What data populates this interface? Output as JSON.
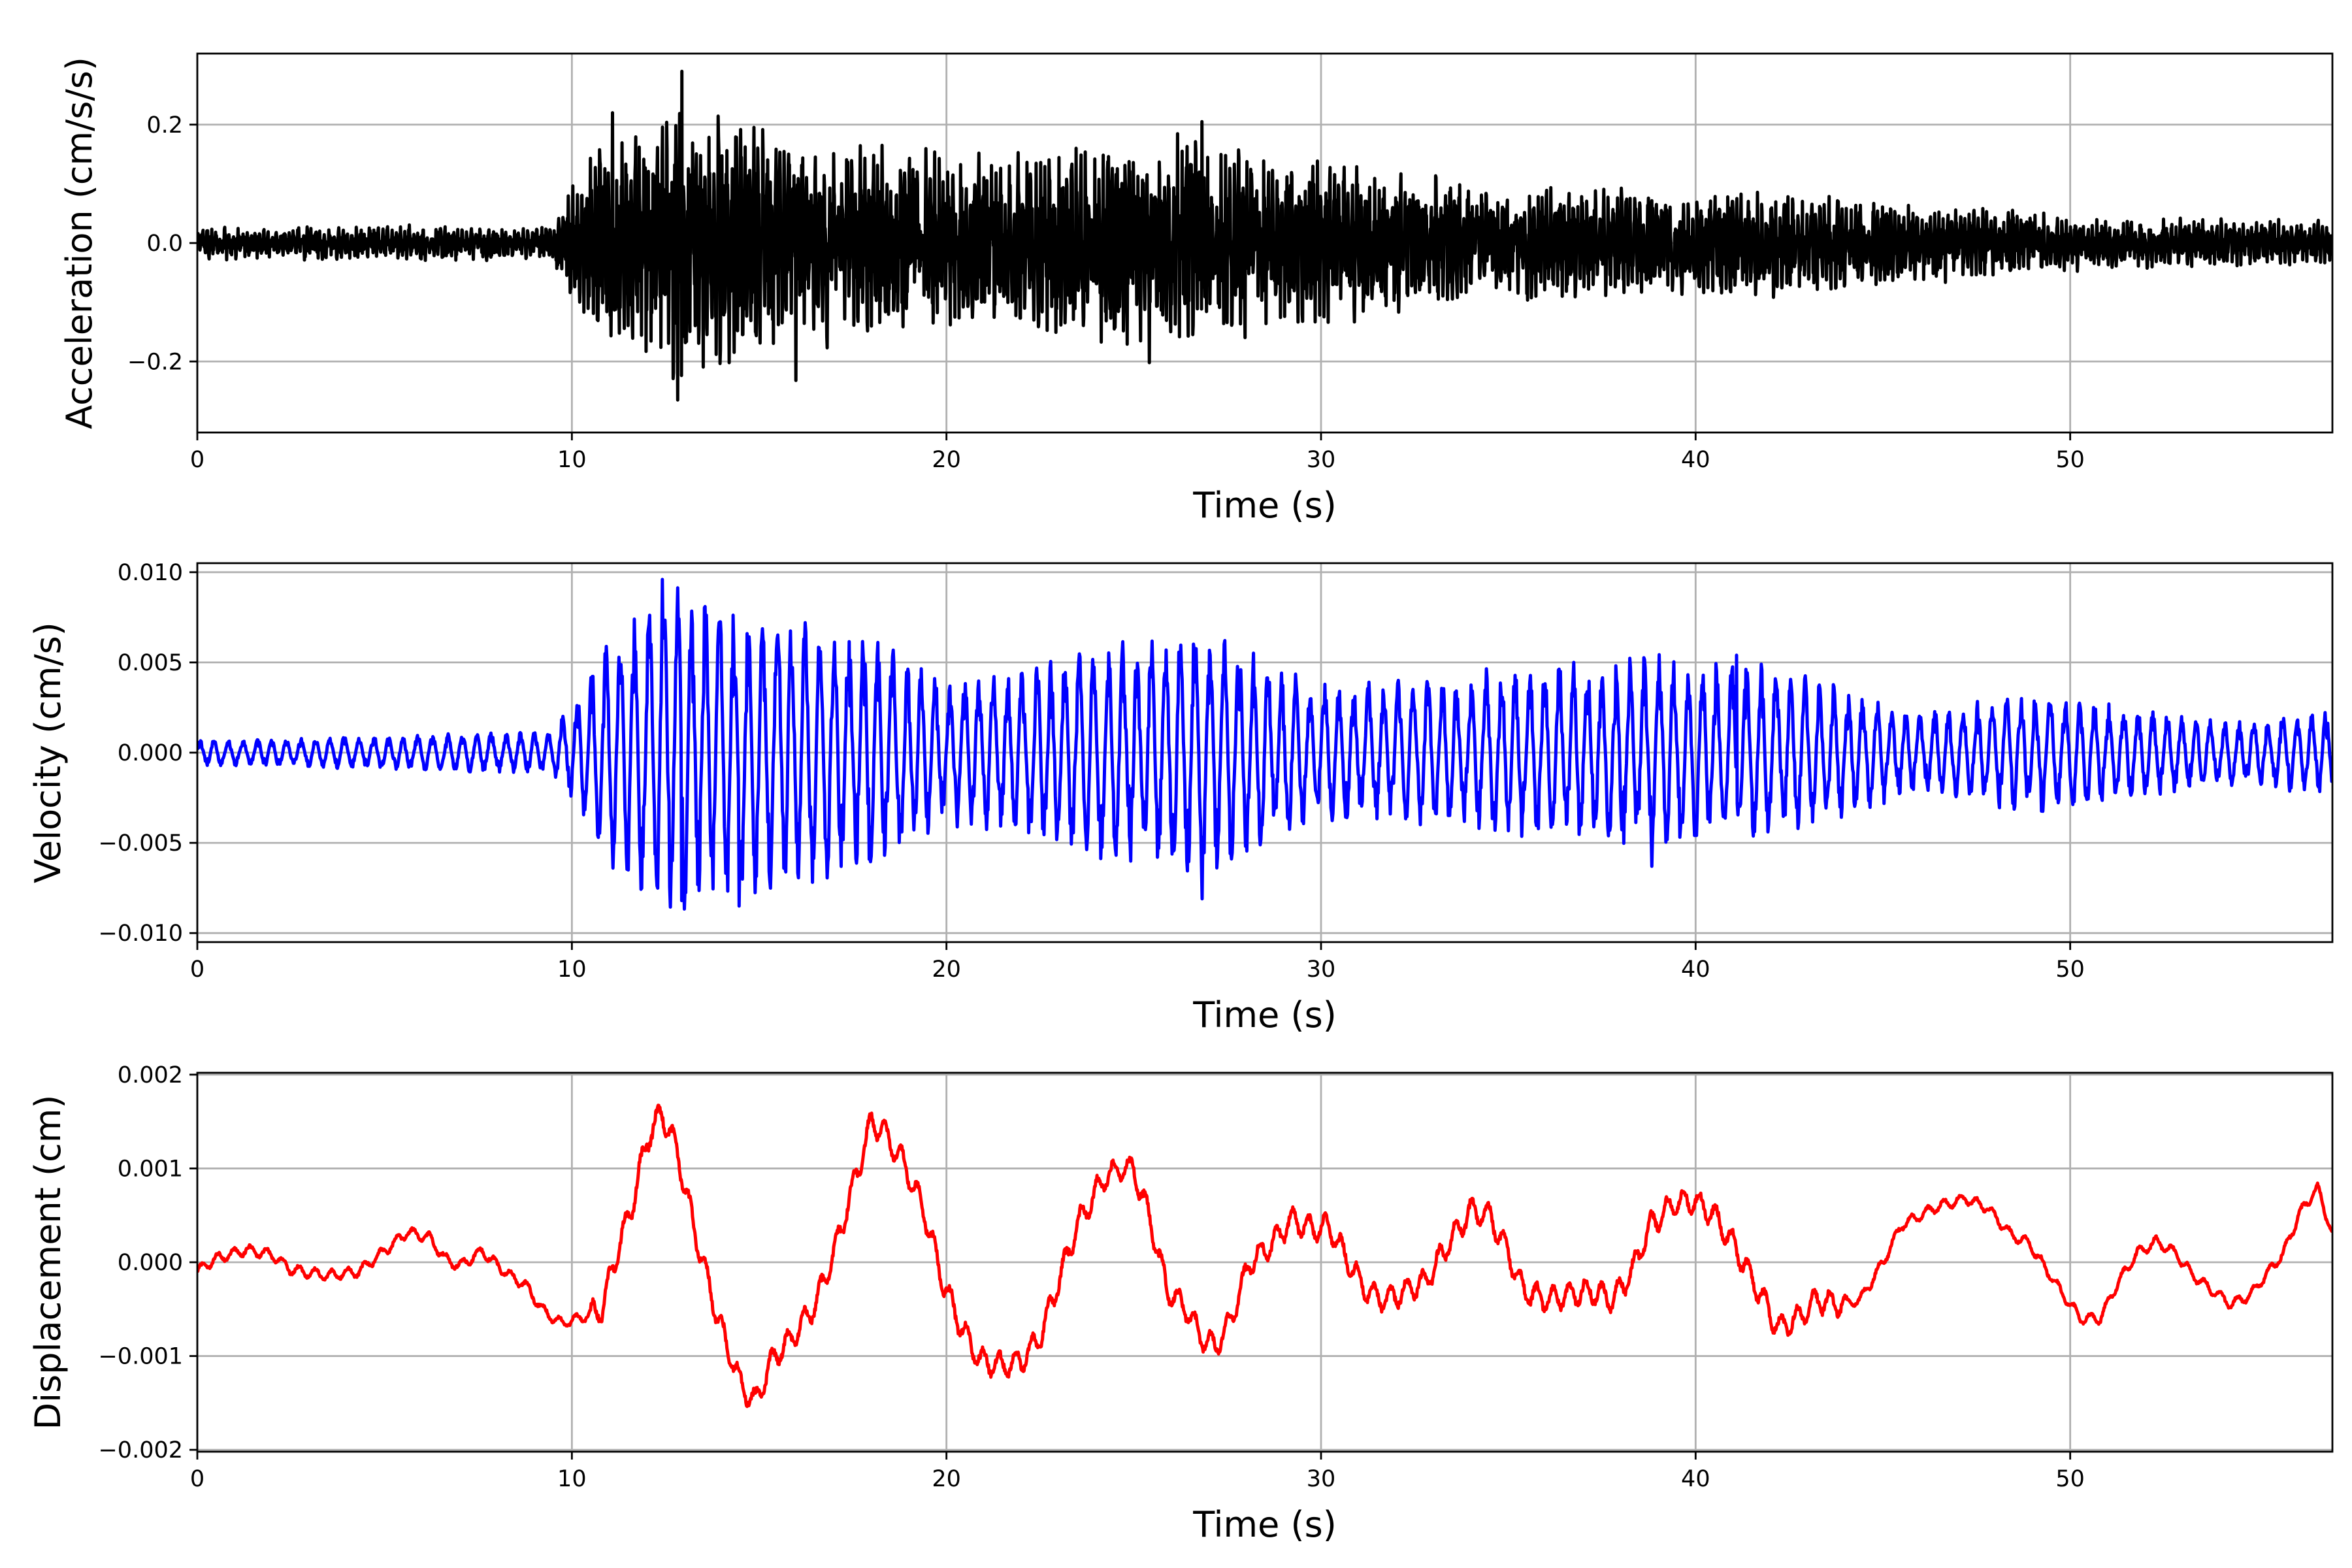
{
  "chart_data": [
    {
      "type": "line",
      "xlabel": "Time (s)",
      "ylabel": "Acceleration (cm/s/s)",
      "xlim": [
        0,
        57
      ],
      "ylim": [
        -0.32,
        0.32
      ],
      "x_ticks": [
        0,
        10,
        20,
        30,
        40,
        50
      ],
      "y_ticks": [
        -0.2,
        0.0,
        0.2
      ],
      "y_tick_labels": [
        "−0.2",
        "0.0",
        "0.2"
      ],
      "grid": true,
      "line_color": "#000000",
      "series": [
        {
          "envelope": [
            [
              0,
              0.03
            ],
            [
              9.5,
              0.035
            ],
            [
              10.7,
              0.2
            ],
            [
              12.9,
              0.27
            ],
            [
              16,
              0.2
            ],
            [
              20,
              0.17
            ],
            [
              26.8,
              0.2
            ],
            [
              30,
              0.15
            ],
            [
              36,
              0.1
            ],
            [
              42,
              0.1
            ],
            [
              50,
              0.05
            ],
            [
              57,
              0.04
            ]
          ],
          "peaks": [
            [
              12.94,
              0.29
            ],
            [
              12.82,
              -0.265
            ],
            [
              11.08,
              0.22
            ],
            [
              15.98,
              -0.232
            ],
            [
              26.82,
              0.205
            ],
            [
              25.42,
              -0.202
            ]
          ]
        }
      ]
    },
    {
      "type": "line",
      "xlabel": "Time (s)",
      "ylabel": "Velocity (cm/s)",
      "xlim": [
        0,
        57
      ],
      "ylim": [
        -0.0105,
        0.0105
      ],
      "x_ticks": [
        0,
        10,
        20,
        30,
        40,
        50
      ],
      "y_ticks": [
        -0.01,
        -0.005,
        0.0,
        0.005,
        0.01
      ],
      "y_tick_labels": [
        "−0.010",
        "−0.005",
        "0.000",
        "0.005",
        "0.010"
      ],
      "grid": true,
      "line_color": "#0000ff",
      "series": [
        {
          "envelope": [
            [
              0,
              0.0007
            ],
            [
              9.5,
              0.0012
            ],
            [
              10.8,
              0.006
            ],
            [
              12.4,
              0.0095
            ],
            [
              14.4,
              0.0085
            ],
            [
              18,
              0.007
            ],
            [
              20,
              0.004
            ],
            [
              26.8,
              0.0075
            ],
            [
              30,
              0.0038
            ],
            [
              38.8,
              0.0055
            ],
            [
              42.3,
              0.0048
            ],
            [
              46,
              0.0022
            ],
            [
              49,
              0.0035
            ],
            [
              54,
              0.0018
            ],
            [
              57,
              0.0024
            ]
          ],
          "peaks": [
            [
              12.42,
              0.0096
            ],
            [
              14.46,
              -0.0085
            ],
            [
              12.94,
              -0.0082
            ],
            [
              26.82,
              -0.0081
            ],
            [
              38.83,
              -0.0063
            ],
            [
              41.1,
              0.0054
            ]
          ]
        }
      ]
    },
    {
      "type": "line",
      "xlabel": "Time (s)",
      "ylabel": "Displacement (cm)",
      "xlim": [
        0,
        57
      ],
      "ylim": [
        -0.00202,
        0.00202
      ],
      "x_ticks": [
        0,
        10,
        20,
        30,
        40,
        50
      ],
      "y_ticks": [
        -0.002,
        -0.001,
        0.0,
        0.001,
        0.002
      ],
      "y_tick_labels": [
        "−0.002",
        "−0.001",
        "0.000",
        "0.001",
        "0.002"
      ],
      "grid": true,
      "line_color": "#ff0000",
      "series": [
        {
          "x": [
            0,
            0.5,
            1.3,
            2.0,
            2.5,
            3.5,
            4.3,
            5.0,
            5.6,
            6.2,
            6.6,
            7.0,
            7.6,
            8.2,
            8.8,
            9.2,
            9.7,
            10.2,
            10.8,
            11.2,
            11.6,
            12.0,
            12.4,
            12.8,
            13.3,
            13.9,
            14.5,
            14.9,
            15.4,
            15.9,
            16.5,
            17.0,
            17.5,
            18.0,
            18.3,
            18.8,
            19.4,
            19.9,
            20.4,
            20.9,
            21.5,
            22.0,
            22.5,
            23.0,
            23.5,
            24.2,
            24.7,
            25.0,
            25.4,
            25.9,
            26.4,
            26.8,
            27.2,
            27.6,
            28.1,
            28.7,
            29.2,
            29.8,
            30.2,
            30.6,
            31.2,
            31.7,
            32.3,
            32.8,
            33.4,
            34.0,
            34.5,
            35.0,
            35.4,
            36.0,
            36.6,
            37.2,
            37.8,
            38.3,
            38.8,
            39.5,
            40.0,
            40.5,
            41.0,
            41.6,
            42.2,
            42.7,
            43.2,
            43.8,
            44.4,
            45.0,
            45.5,
            46.0,
            46.5,
            47.2,
            47.8,
            48.4,
            48.9,
            49.4,
            49.9,
            50.3,
            50.8,
            51.3,
            51.8,
            52.3,
            52.8,
            53.3,
            53.8,
            54.3,
            54.8,
            55.3,
            55.7,
            56.1,
            56.6,
            57.0
          ],
          "y": [
            -0.0001,
            4e-05,
            0.00013,
            8e-05,
            -8e-05,
            -0.00014,
            -0.0001,
            0.00012,
            0.00032,
            0.00026,
            4e-05,
            -4e-05,
            0.00012,
            -0.0001,
            -0.00026,
            -0.0005,
            -0.00065,
            -0.0006,
            -0.0005,
            0.0001,
            0.0006,
            0.0013,
            0.0016,
            0.0012,
            0.0003,
            -0.0006,
            -0.0013,
            -0.0015,
            -0.001,
            -0.0008,
            -0.00045,
            0.0001,
            0.0008,
            0.0015,
            0.0014,
            0.0011,
            0.00055,
            -0.0002,
            -0.0007,
            -0.00105,
            -0.0011,
            -0.00105,
            -0.0008,
            -0.0002,
            0.0004,
            0.0009,
            0.001,
            0.00098,
            0.0005,
            -0.0003,
            -0.0005,
            -0.0008,
            -0.0009,
            -0.0006,
            0.0,
            0.0002,
            0.00045,
            0.00035,
            0.0004,
            0.0001,
            -0.0003,
            -0.0004,
            -0.0003,
            -0.0002,
            0.0002,
            0.00055,
            0.0005,
            0.0001,
            -0.0003,
            -0.0004,
            -0.00035,
            -0.0003,
            -0.0004,
            -0.0001,
            0.0004,
            0.00065,
            0.00065,
            0.0005,
            0.0002,
            -0.00025,
            -0.0007,
            -0.0006,
            -0.0004,
            -0.00045,
            -0.0004,
            0.0,
            0.0004,
            0.0005,
            0.0006,
            0.00068,
            0.00058,
            0.0003,
            0.0002,
            -0.0001,
            -0.0004,
            -0.0006,
            -0.0006,
            -0.0002,
            0.0001,
            0.00022,
            0.0001,
            -0.00015,
            -0.0003,
            -0.00045,
            -0.00035,
            -0.0001,
            0.0001,
            0.0005,
            0.0008,
            0.0003
          ]
        }
      ]
    }
  ]
}
